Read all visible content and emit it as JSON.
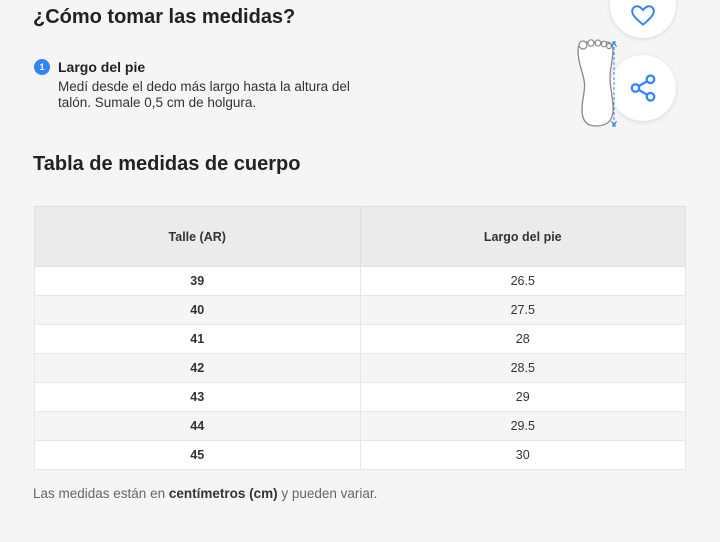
{
  "header": {
    "title": "¿Cómo tomar las medidas?"
  },
  "step": {
    "number": "1",
    "title": "Largo del pie",
    "description": "Medí desde el dedo más largo hasta la altura del talón. Sumale 0,5 cm de holgura."
  },
  "actions": {
    "favorite_icon": "heart-icon",
    "share_icon": "share-icon"
  },
  "table": {
    "title": "Tabla de medidas de cuerpo",
    "headers": [
      "Talle (AR)",
      "Largo del pie"
    ],
    "rows": [
      [
        "39",
        "26.5"
      ],
      [
        "40",
        "27.5"
      ],
      [
        "41",
        "28"
      ],
      [
        "42",
        "28.5"
      ],
      [
        "43",
        "29"
      ],
      [
        "44",
        "29.5"
      ],
      [
        "45",
        "30"
      ]
    ]
  },
  "note": {
    "prefix": "Las medidas están en ",
    "emphasis": "centímetros (cm)",
    "suffix": " y pueden variar."
  },
  "colors": {
    "accent": "#3483fa",
    "measure_line": "#3483fa"
  }
}
